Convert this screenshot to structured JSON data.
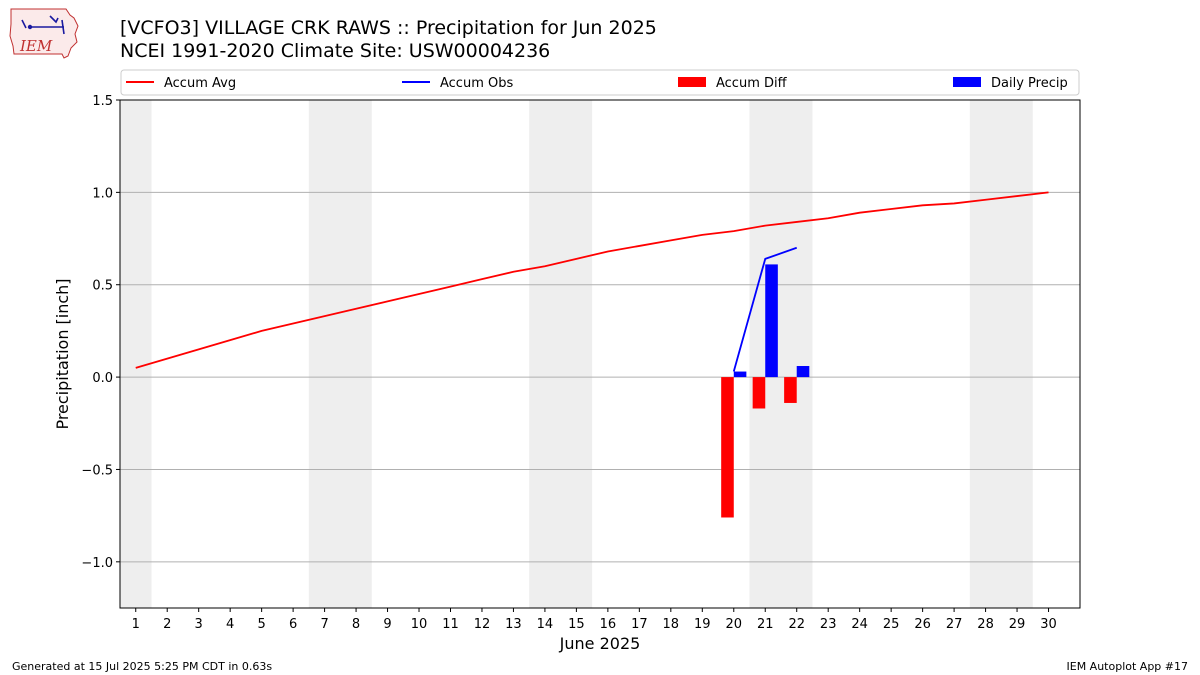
{
  "header": {
    "title_line1": "[VCFO3] VILLAGE CRK RAWS :: Precipitation for Jun 2025",
    "title_line2": "NCEI 1991-2020 Climate Site: USW00004236",
    "logo_text": "IEM"
  },
  "footer": {
    "generated": "Generated at 15 Jul 2025 5:25 PM CDT in 0.63s",
    "app": "IEM Autoplot App #17"
  },
  "colors": {
    "avg": "#ff0000",
    "obs": "#0000ff",
    "diff": "#ff0000",
    "daily": "#0000ff",
    "weekend": "#eeeeee"
  },
  "chart_data": {
    "type": "bar",
    "xlabel": "June 2025",
    "ylabel": "Precipitation [inch]",
    "xlim": [
      0.5,
      31.0
    ],
    "ylim": [
      -1.25,
      1.5
    ],
    "yticks": [
      -1.0,
      -0.5,
      0.0,
      0.5,
      1.0,
      1.5
    ],
    "ytick_labels": [
      "−1.0",
      "−0.5",
      "0.0",
      "0.5",
      "1.0",
      "1.5"
    ],
    "xticks": [
      1,
      2,
      3,
      4,
      5,
      6,
      7,
      8,
      9,
      10,
      11,
      12,
      13,
      14,
      15,
      16,
      17,
      18,
      19,
      20,
      21,
      22,
      23,
      24,
      25,
      26,
      27,
      28,
      29,
      30
    ],
    "grid": "horizontal",
    "legend_placement": "top",
    "weekend_shading": [
      [
        0.5,
        1.5
      ],
      [
        6.5,
        8.5
      ],
      [
        13.5,
        15.5
      ],
      [
        20.5,
        22.5
      ],
      [
        27.5,
        29.5
      ]
    ],
    "legend": [
      {
        "label": "Accum Avg",
        "kind": "line",
        "color": "#ff0000"
      },
      {
        "label": "Accum Obs",
        "kind": "line",
        "color": "#0000ff"
      },
      {
        "label": "Accum Diff",
        "kind": "bar",
        "color": "#ff0000"
      },
      {
        "label": "Daily Precip",
        "kind": "bar",
        "color": "#0000ff"
      }
    ],
    "series": [
      {
        "name": "Accum Avg",
        "type": "line",
        "color": "#ff0000",
        "x": [
          1,
          2,
          3,
          4,
          5,
          6,
          7,
          8,
          9,
          10,
          11,
          12,
          13,
          14,
          15,
          16,
          17,
          18,
          19,
          20,
          21,
          22,
          23,
          24,
          25,
          26,
          27,
          28,
          29,
          30
        ],
        "values": [
          0.05,
          0.1,
          0.15,
          0.2,
          0.25,
          0.29,
          0.33,
          0.37,
          0.41,
          0.45,
          0.49,
          0.53,
          0.57,
          0.6,
          0.64,
          0.68,
          0.71,
          0.74,
          0.77,
          0.79,
          0.82,
          0.84,
          0.86,
          0.89,
          0.91,
          0.93,
          0.94,
          0.96,
          0.98,
          1.0
        ]
      },
      {
        "name": "Accum Obs",
        "type": "line",
        "color": "#0000ff",
        "x": [
          20,
          21,
          22
        ],
        "values": [
          0.03,
          0.64,
          0.7
        ]
      },
      {
        "name": "Accum Diff",
        "type": "bar",
        "color": "#ff0000",
        "x": [
          20,
          21,
          22
        ],
        "values": [
          -0.76,
          -0.17,
          -0.14
        ]
      },
      {
        "name": "Daily Precip",
        "type": "bar",
        "color": "#0000ff",
        "x": [
          20,
          21,
          22
        ],
        "values": [
          0.03,
          0.61,
          0.06
        ]
      }
    ]
  }
}
